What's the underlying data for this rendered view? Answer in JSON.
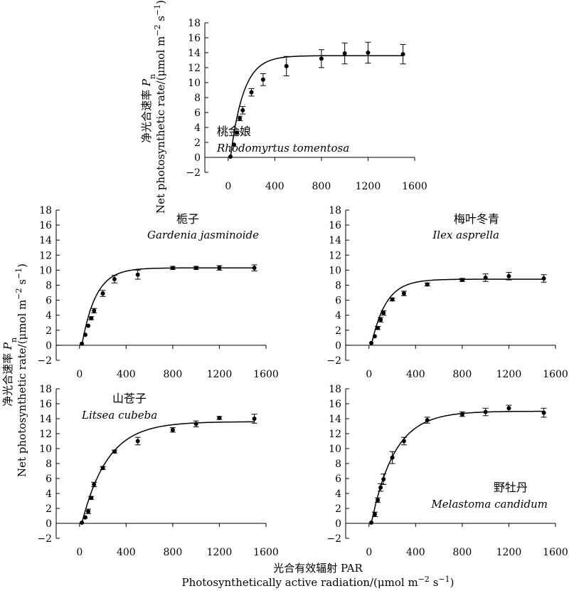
{
  "figure": {
    "ylabel_cn_prefix": "净光合速率 ",
    "ylabel_cn_symbol": "P",
    "ylabel_cn_sub": "n",
    "ylabel_en_prefix": "Net photosynthetic rate/(μmol m",
    "ylabel_en_sup1": "−2",
    "ylabel_en_mid": " s",
    "ylabel_en_sup2": "−1",
    "ylabel_en_suffix": ")",
    "xlabel_cn": "光合有效辐射 PAR",
    "xlabel_en_prefix": "Photosynthetically active radiation/(μmol m",
    "xlabel_en_sup1": "−2",
    "xlabel_en_mid": " s",
    "xlabel_en_sup2": "−1",
    "xlabel_en_suffix": ")"
  },
  "chart_data": [
    {
      "type": "scatter",
      "cn_name": "桃金娘",
      "latin_name": "Rhodomyrtus tomentosa",
      "xlim": [
        -200,
        1600
      ],
      "ylim": [
        -2,
        18
      ],
      "xticks": [
        0,
        400,
        800,
        1200,
        1600
      ],
      "yticks": [
        -2,
        0,
        2,
        4,
        6,
        8,
        10,
        12,
        14,
        16,
        18
      ],
      "fit": {
        "model": "exponential",
        "pmax": 13.6,
        "k": 0.009,
        "x0": 20
      },
      "points": [
        {
          "x": 20,
          "y": 0.1,
          "err": 0
        },
        {
          "x": 50,
          "y": 1.7,
          "err": 0
        },
        {
          "x": 75,
          "y": 3.3,
          "err": 0.2
        },
        {
          "x": 100,
          "y": 5.2,
          "err": 0.3
        },
        {
          "x": 125,
          "y": 6.3,
          "err": 0.5
        },
        {
          "x": 200,
          "y": 8.7,
          "err": 0.5
        },
        {
          "x": 300,
          "y": 10.4,
          "err": 0.8
        },
        {
          "x": 500,
          "y": 12.2,
          "err": 1.3
        },
        {
          "x": 800,
          "y": 13.2,
          "err": 1.2
        },
        {
          "x": 1000,
          "y": 13.9,
          "err": 1.4
        },
        {
          "x": 1200,
          "y": 14.0,
          "err": 1.4
        },
        {
          "x": 1500,
          "y": 13.8,
          "err": 1.3
        }
      ]
    },
    {
      "type": "scatter",
      "cn_name": "栀子",
      "latin_name": "Gardenia jasminoide",
      "xlim": [
        -200,
        1600
      ],
      "ylim": [
        -2,
        18
      ],
      "xticks": [
        0,
        400,
        800,
        1200,
        1600
      ],
      "yticks": [
        -2,
        0,
        2,
        4,
        6,
        8,
        10,
        12,
        14,
        16,
        18
      ],
      "fit": {
        "model": "exponential",
        "pmax": 10.3,
        "k": 0.0083,
        "x0": 20
      },
      "points": [
        {
          "x": 20,
          "y": 0.2,
          "err": 0
        },
        {
          "x": 50,
          "y": 1.4,
          "err": 0
        },
        {
          "x": 75,
          "y": 2.6,
          "err": 0
        },
        {
          "x": 100,
          "y": 3.6,
          "err": 0.2
        },
        {
          "x": 125,
          "y": 4.6,
          "err": 0.3
        },
        {
          "x": 200,
          "y": 6.9,
          "err": 0.4
        },
        {
          "x": 300,
          "y": 8.8,
          "err": 0.5
        },
        {
          "x": 500,
          "y": 9.4,
          "err": 0.6
        },
        {
          "x": 800,
          "y": 10.3,
          "err": 0.2
        },
        {
          "x": 1000,
          "y": 10.3,
          "err": 0.2
        },
        {
          "x": 1200,
          "y": 10.3,
          "err": 0.3
        },
        {
          "x": 1500,
          "y": 10.3,
          "err": 0.4
        }
      ]
    },
    {
      "type": "scatter",
      "cn_name": "梅叶冬青",
      "latin_name": "Ilex asprella",
      "xlim": [
        -200,
        1600
      ],
      "ylim": [
        -2,
        18
      ],
      "xticks": [
        0,
        400,
        800,
        1200,
        1600
      ],
      "yticks": [
        -2,
        0,
        2,
        4,
        6,
        8,
        10,
        12,
        14,
        16,
        18
      ],
      "fit": {
        "model": "exponential",
        "pmax": 8.8,
        "k": 0.008,
        "x0": 20
      },
      "points": [
        {
          "x": 20,
          "y": 0.3,
          "err": 0
        },
        {
          "x": 50,
          "y": 1.2,
          "err": 0
        },
        {
          "x": 75,
          "y": 2.3,
          "err": 0.2
        },
        {
          "x": 100,
          "y": 3.4,
          "err": 0.3
        },
        {
          "x": 125,
          "y": 4.3,
          "err": 0.3
        },
        {
          "x": 200,
          "y": 6.1,
          "err": 0.2
        },
        {
          "x": 300,
          "y": 6.9,
          "err": 0.3
        },
        {
          "x": 500,
          "y": 8.1,
          "err": 0.2
        },
        {
          "x": 800,
          "y": 8.7,
          "err": 0.2
        },
        {
          "x": 1000,
          "y": 9.0,
          "err": 0.5
        },
        {
          "x": 1200,
          "y": 9.2,
          "err": 0.5
        },
        {
          "x": 1500,
          "y": 8.9,
          "err": 0.5
        }
      ]
    },
    {
      "type": "scatter",
      "cn_name": "山苍子",
      "latin_name": "Litsea cubeba",
      "xlim": [
        -200,
        1600
      ],
      "ylim": [
        -2,
        18
      ],
      "xticks": [
        0,
        400,
        800,
        1200,
        1600
      ],
      "yticks": [
        -2,
        0,
        2,
        4,
        6,
        8,
        10,
        12,
        14,
        16,
        18
      ],
      "fit": {
        "model": "exponential",
        "pmax": 13.6,
        "k": 0.0045,
        "x0": 20
      },
      "points": [
        {
          "x": 20,
          "y": 0.1,
          "err": 0
        },
        {
          "x": 50,
          "y": 0.8,
          "err": 0
        },
        {
          "x": 75,
          "y": 1.6,
          "err": 0.3
        },
        {
          "x": 100,
          "y": 3.4,
          "err": 0.2
        },
        {
          "x": 125,
          "y": 5.2,
          "err": 0.3
        },
        {
          "x": 200,
          "y": 7.4,
          "err": 0.2
        },
        {
          "x": 300,
          "y": 9.6,
          "err": 0.2
        },
        {
          "x": 500,
          "y": 11.0,
          "err": 0.5
        },
        {
          "x": 800,
          "y": 12.5,
          "err": 0.3
        },
        {
          "x": 1000,
          "y": 13.3,
          "err": 0.4
        },
        {
          "x": 1200,
          "y": 14.1,
          "err": 0.2
        },
        {
          "x": 1500,
          "y": 14.0,
          "err": 0.6
        }
      ]
    },
    {
      "type": "scatter",
      "cn_name": "野牡丹",
      "latin_name": "Melastoma candidum",
      "xlim": [
        -200,
        1600
      ],
      "ylim": [
        -2,
        18
      ],
      "xticks": [
        0,
        400,
        800,
        1200,
        1600
      ],
      "yticks": [
        -2,
        0,
        2,
        4,
        6,
        8,
        10,
        12,
        14,
        16,
        18
      ],
      "fit": {
        "model": "exponential",
        "pmax": 15.0,
        "k": 0.005,
        "x0": 20
      },
      "points": [
        {
          "x": 20,
          "y": 0.1,
          "err": 0
        },
        {
          "x": 50,
          "y": 1.2,
          "err": 0.3
        },
        {
          "x": 75,
          "y": 3.1,
          "err": 0.3
        },
        {
          "x": 100,
          "y": 4.8,
          "err": 0.5
        },
        {
          "x": 125,
          "y": 5.9,
          "err": 0.7
        },
        {
          "x": 200,
          "y": 8.8,
          "err": 0.8
        },
        {
          "x": 300,
          "y": 11.0,
          "err": 0.5
        },
        {
          "x": 500,
          "y": 13.8,
          "err": 0.4
        },
        {
          "x": 800,
          "y": 14.6,
          "err": 0.3
        },
        {
          "x": 1000,
          "y": 14.9,
          "err": 0.5
        },
        {
          "x": 1200,
          "y": 15.4,
          "err": 0.4
        },
        {
          "x": 1500,
          "y": 14.8,
          "err": 0.6
        }
      ]
    }
  ]
}
